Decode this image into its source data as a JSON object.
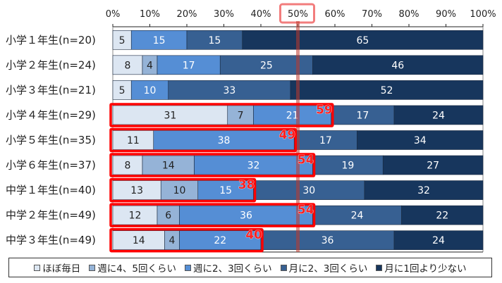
{
  "chart_data": {
    "type": "bar",
    "orientation": "horizontal-stacked-100",
    "title": "",
    "xlabel": "",
    "ylabel": "",
    "xlim": [
      0,
      100
    ],
    "x_ticks": [
      "0%",
      "10%",
      "20%",
      "30%",
      "40%",
      "50%",
      "60%",
      "70%",
      "80%",
      "90%",
      "100%"
    ],
    "highlight_tick": "50%",
    "reference_line": 50,
    "categories": [
      "小学１年生(n=20)",
      "小学２年生(n=24)",
      "小学３年生(n=21)",
      "小学４年生(n=29)",
      "小学５年生(n=35)",
      "小学６年生(n=37)",
      "中学１年生(n=40)",
      "中学２年生(n=49)",
      "中学３年生(n=49)"
    ],
    "series": [
      {
        "name": "ほぼ毎日",
        "color": "#dce6f2",
        "text_color": "#222222",
        "values": [
          5,
          8,
          5,
          31,
          11,
          8,
          13,
          12,
          14
        ]
      },
      {
        "name": "週に4、5回くらい",
        "color": "#95b3d7",
        "text_color": "#222222",
        "values": [
          0,
          4,
          0,
          7,
          0,
          14,
          10,
          6,
          4
        ]
      },
      {
        "name": "週に2、3回くらい",
        "color": "#558ed5",
        "text_color": "#ffffff",
        "values": [
          15,
          17,
          10,
          21,
          38,
          32,
          15,
          36,
          22
        ]
      },
      {
        "name": "月に2、3回くらい",
        "color": "#376092",
        "text_color": "#ffffff",
        "values": [
          15,
          25,
          33,
          17,
          17,
          19,
          30,
          24,
          36
        ]
      },
      {
        "name": "月に1回より少ない",
        "color": "#17365d",
        "text_color": "#ffffff",
        "values": [
          65,
          46,
          52,
          24,
          34,
          27,
          32,
          22,
          24
        ]
      }
    ],
    "highlights": [
      {
        "row": 3,
        "sum": "59"
      },
      {
        "row": 4,
        "sum": "49"
      },
      {
        "row": 5,
        "sum": "54"
      },
      {
        "row": 6,
        "sum": "38"
      },
      {
        "row": 7,
        "sum": "54"
      },
      {
        "row": 8,
        "sum": "40"
      }
    ],
    "legend_position": "bottom",
    "grid": false
  },
  "legend": {
    "items": [
      {
        "label": "ほぼ毎日",
        "color": "#dce6f2"
      },
      {
        "label": "週に4、5回くらい",
        "color": "#95b3d7"
      },
      {
        "label": "週に2、3回くらい",
        "color": "#558ed5"
      },
      {
        "label": "月に2、3回くらい",
        "color": "#376092"
      },
      {
        "label": "月に1回より少ない",
        "color": "#17365d"
      }
    ]
  }
}
